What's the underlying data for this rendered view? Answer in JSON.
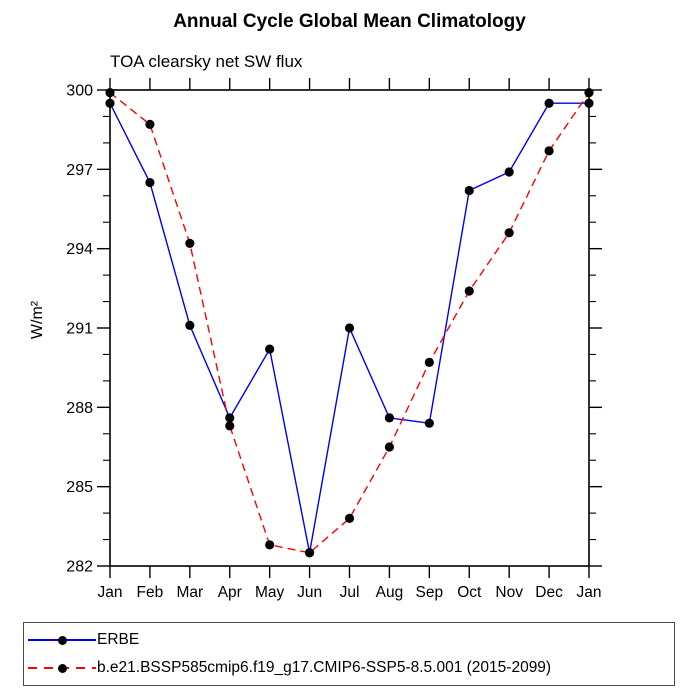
{
  "chart_data": {
    "type": "line",
    "title": "Annual Cycle Global Mean Climatology",
    "subtitle": "TOA clearsky net SW flux",
    "ylabel": "W/m²",
    "categories": [
      "Jan",
      "Feb",
      "Mar",
      "Apr",
      "May",
      "Jun",
      "Jul",
      "Aug",
      "Sep",
      "Oct",
      "Nov",
      "Dec",
      "Jan"
    ],
    "ylim": [
      282,
      300
    ],
    "ytick_major": [
      300,
      297,
      294,
      291,
      288,
      285,
      282
    ],
    "ytick_minor_step": 1,
    "grid": false,
    "legend_position": "bottom-left-box",
    "series": [
      {
        "name": "ERBE",
        "color": "#0000ee",
        "style": "solid",
        "marker": "circle",
        "marker_color": "#000000",
        "values": [
          299.5,
          296.5,
          291.1,
          287.6,
          290.2,
          282.5,
          291.0,
          287.6,
          287.4,
          296.2,
          296.9,
          299.5,
          299.5
        ]
      },
      {
        "name": "b.e21.BSSP585cmip6.f19_g17.CMIP6-SSP5-8.5.001 (2015-2099)",
        "color": "#ff0000",
        "style": "dashed",
        "marker": "circle",
        "marker_color": "#000000",
        "values": [
          299.9,
          298.7,
          294.2,
          287.3,
          282.8,
          282.5,
          283.8,
          286.5,
          289.7,
          292.4,
          294.6,
          297.7,
          299.9
        ]
      }
    ]
  }
}
